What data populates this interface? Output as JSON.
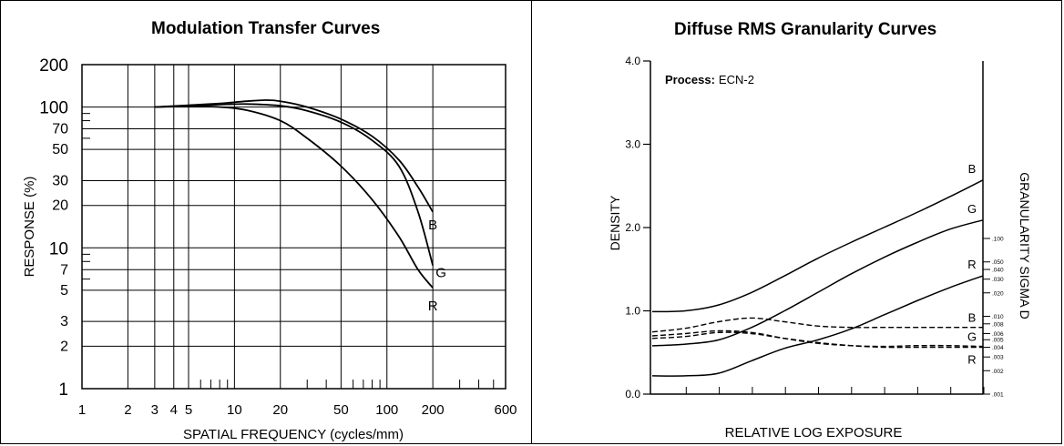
{
  "chart_data": [
    {
      "type": "line",
      "title": "Modulation Transfer Curves",
      "xlabel": "SPATIAL FREQUENCY (cycles/mm)",
      "ylabel": "RESPONSE (%)",
      "xscale": "log",
      "yscale": "log",
      "xlim": [
        1,
        600
      ],
      "ylim": [
        1,
        200
      ],
      "xticklabels": [
        "1",
        "2",
        "3",
        "4",
        "5",
        "10",
        "20",
        "50",
        "100",
        "200",
        "600"
      ],
      "xtickvalues": [
        1,
        2,
        3,
        4,
        5,
        10,
        20,
        50,
        100,
        200,
        600
      ],
      "yticklabels": [
        "200",
        "100",
        "70",
        "50",
        "30",
        "20",
        "10",
        "7",
        "5",
        "3",
        "2",
        "1"
      ],
      "ytickvalues": [
        200,
        100,
        70,
        50,
        30,
        20,
        10,
        7,
        5,
        3,
        2,
        1
      ],
      "grid": true,
      "series": [
        {
          "name": "B",
          "x": [
            3,
            5,
            8,
            12,
            16,
            20,
            30,
            50,
            80,
            120,
            160,
            200
          ],
          "y": [
            100,
            103,
            106,
            110,
            112,
            110,
            100,
            82,
            62,
            42,
            27,
            18
          ]
        },
        {
          "name": "G",
          "x": [
            3,
            5,
            8,
            12,
            20,
            30,
            50,
            80,
            120,
            160,
            200
          ],
          "y": [
            100,
            102,
            104,
            105,
            102,
            94,
            78,
            58,
            38,
            18,
            7.5
          ]
        },
        {
          "name": "R",
          "x": [
            3,
            5,
            8,
            12,
            20,
            30,
            50,
            80,
            120,
            160,
            200
          ],
          "y": [
            100,
            101,
            100,
            95,
            80,
            60,
            38,
            22,
            12,
            7,
            5.2
          ]
        }
      ]
    },
    {
      "type": "line",
      "title": "Diffuse RMS Granularity Curves",
      "annotation_bold": "Process:",
      "annotation_text": "ECN-2",
      "xlabel": "RELATIVE LOG EXPOSURE",
      "ylabel": "DENSITY",
      "ylabel_right": "GRANULARITY SIGMA D",
      "ylim": [
        0.0,
        4.0
      ],
      "yticklabels": [
        "0.0",
        "1.0",
        "2.0",
        "3.0",
        "4.0"
      ],
      "ytickvalues": [
        0.0,
        1.0,
        2.0,
        3.0,
        4.0
      ],
      "xlim": [
        0,
        10
      ],
      "x_minor_ticks": [
        1,
        2,
        3,
        4,
        5,
        6,
        7,
        8,
        9,
        10
      ],
      "right_axis_ticklabels": [
        ".100",
        ".050",
        ".040",
        ".030",
        ".020",
        ".010",
        ".008",
        ".006",
        ".005",
        ".004",
        ".003",
        ".002",
        ".001"
      ],
      "right_axis_tickvalues": [
        0.1,
        0.05,
        0.04,
        0.03,
        0.02,
        0.01,
        0.008,
        0.006,
        0.005,
        0.004,
        0.003,
        0.002,
        0.001
      ],
      "density_series": [
        {
          "name": "B",
          "x": [
            0,
            1,
            2,
            3,
            4,
            5,
            6,
            7,
            8,
            9,
            10
          ],
          "y": [
            0.99,
            1.0,
            1.07,
            1.22,
            1.42,
            1.63,
            1.82,
            2.0,
            2.18,
            2.37,
            2.57
          ]
        },
        {
          "name": "G",
          "x": [
            0,
            1,
            2,
            3,
            4,
            5,
            6,
            7,
            8,
            9,
            10
          ],
          "y": [
            0.58,
            0.6,
            0.65,
            0.8,
            1.0,
            1.22,
            1.44,
            1.64,
            1.82,
            1.98,
            2.09
          ]
        },
        {
          "name": "R",
          "x": [
            0,
            1,
            2,
            3,
            4,
            5,
            6,
            7,
            8,
            9,
            10
          ],
          "y": [
            0.22,
            0.22,
            0.25,
            0.4,
            0.55,
            0.65,
            0.78,
            0.95,
            1.12,
            1.28,
            1.42
          ]
        }
      ],
      "granularity_series": [
        {
          "name": "B",
          "x": [
            0,
            1,
            2,
            3,
            4,
            5,
            6,
            7,
            8,
            9,
            10
          ],
          "y": [
            0.0063,
            0.007,
            0.0085,
            0.0095,
            0.0085,
            0.0075,
            0.0072,
            0.0072,
            0.0072,
            0.0072,
            0.0072
          ]
        },
        {
          "name": "G",
          "x": [
            0,
            1,
            2,
            3,
            4,
            5,
            6,
            7,
            8,
            9,
            10
          ],
          "y": [
            0.0056,
            0.006,
            0.0065,
            0.0062,
            0.0052,
            0.0045,
            0.0042,
            0.0041,
            0.0042,
            0.0042,
            0.0041
          ]
        },
        {
          "name": "R",
          "x": [
            0,
            1,
            2,
            3,
            4,
            5,
            6,
            7,
            8,
            9,
            10
          ],
          "y": [
            0.0052,
            0.0055,
            0.0062,
            0.006,
            0.0052,
            0.0046,
            0.0042,
            0.004,
            0.004,
            0.004,
            0.004
          ]
        }
      ]
    }
  ]
}
